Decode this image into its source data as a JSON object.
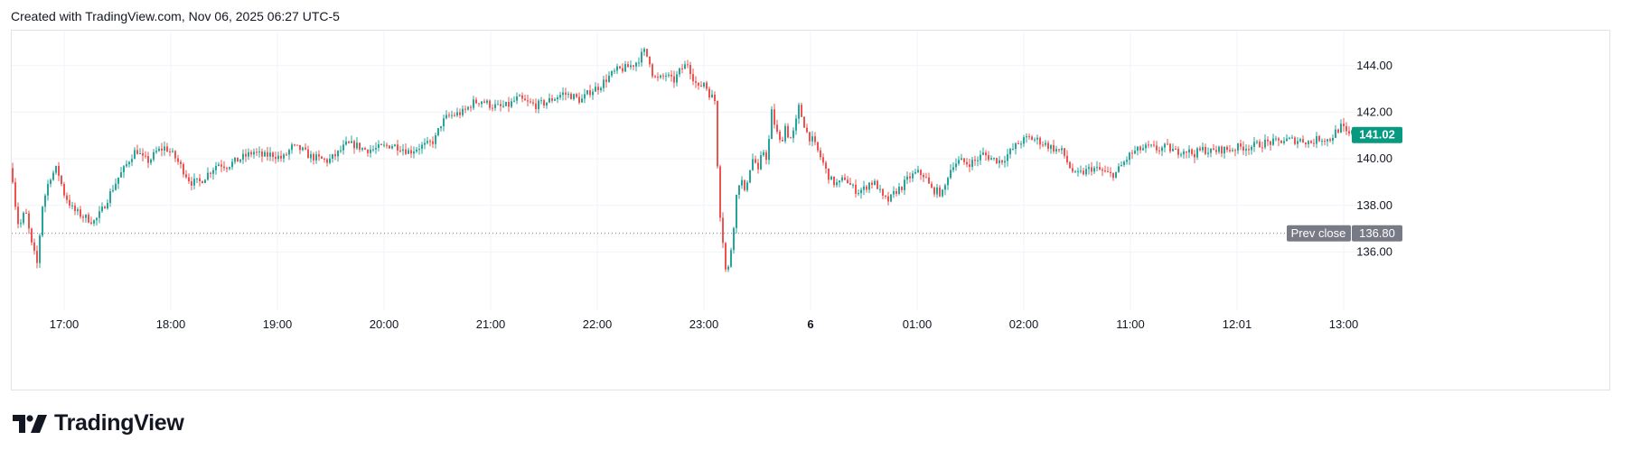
{
  "header": {
    "text": "Created with TradingView.com, Nov 06, 2025 06:27 UTC-5"
  },
  "brand": {
    "name": "TradingView",
    "logo_icon": "tradingview-logo-icon"
  },
  "colors": {
    "up": "#26a69a",
    "down": "#ef5350",
    "last_price_bg": "#089981",
    "prev_close_bg": "#787b86",
    "grid": "#f0f3fa"
  },
  "chart_data": {
    "type": "candlestick",
    "ylim": [
      133.5,
      145.5
    ],
    "y_ticks": [
      "136.00",
      "138.00",
      "140.00",
      "142.00",
      "144.00"
    ],
    "x_ticks": [
      "17:00",
      "18:00",
      "19:00",
      "20:00",
      "21:00",
      "22:00",
      "23:00",
      "6",
      "01:00",
      "02:00",
      "11:00",
      "12:01",
      "13:00"
    ],
    "x_tick_bold": [
      "6"
    ],
    "last_price": {
      "value": 141.02,
      "label": "141.02"
    },
    "prev_close": {
      "value": 136.8,
      "label": "Prev close",
      "value_label": "136.80"
    },
    "close_path": [
      [
        0,
        139.6
      ],
      [
        3,
        138.3
      ],
      [
        8,
        137.0
      ],
      [
        15,
        137.8
      ],
      [
        22,
        136.3
      ],
      [
        28,
        135.5
      ],
      [
        34,
        138.0
      ],
      [
        42,
        139.2
      ],
      [
        50,
        139.6
      ],
      [
        58,
        138.5
      ],
      [
        68,
        137.8
      ],
      [
        80,
        137.5
      ],
      [
        92,
        137.3
      ],
      [
        100,
        137.8
      ],
      [
        110,
        138.6
      ],
      [
        118,
        139.2
      ],
      [
        125,
        139.6
      ],
      [
        132,
        140.1
      ],
      [
        138,
        140.4
      ],
      [
        145,
        140.0
      ],
      [
        152,
        139.9
      ],
      [
        160,
        140.3
      ],
      [
        170,
        140.5
      ],
      [
        180,
        140.1
      ],
      [
        190,
        139.5
      ],
      [
        198,
        139.0
      ],
      [
        208,
        139.0
      ],
      [
        218,
        139.4
      ],
      [
        228,
        139.8
      ],
      [
        238,
        139.7
      ],
      [
        248,
        139.9
      ],
      [
        258,
        140.1
      ],
      [
        268,
        140.3
      ],
      [
        278,
        140.1
      ],
      [
        288,
        140.2
      ],
      [
        300,
        140.0
      ],
      [
        310,
        140.5
      ],
      [
        320,
        140.4
      ],
      [
        330,
        140.1
      ],
      [
        340,
        140.0
      ],
      [
        350,
        139.9
      ],
      [
        360,
        140.2
      ],
      [
        370,
        140.6
      ],
      [
        380,
        140.6
      ],
      [
        390,
        140.4
      ],
      [
        400,
        140.4
      ],
      [
        410,
        140.5
      ],
      [
        420,
        140.6
      ],
      [
        430,
        140.5
      ],
      [
        440,
        140.3
      ],
      [
        450,
        140.5
      ],
      [
        460,
        140.6
      ],
      [
        468,
        140.8
      ],
      [
        475,
        141.5
      ],
      [
        482,
        141.8
      ],
      [
        490,
        141.9
      ],
      [
        500,
        142.0
      ],
      [
        510,
        142.4
      ],
      [
        520,
        142.5
      ],
      [
        530,
        142.3
      ],
      [
        540,
        142.2
      ],
      [
        550,
        142.3
      ],
      [
        560,
        142.6
      ],
      [
        570,
        142.4
      ],
      [
        580,
        142.3
      ],
      [
        590,
        142.4
      ],
      [
        600,
        142.6
      ],
      [
        610,
        142.8
      ],
      [
        620,
        142.7
      ],
      [
        630,
        142.5
      ],
      [
        640,
        142.9
      ],
      [
        650,
        143.1
      ],
      [
        660,
        143.5
      ],
      [
        670,
        143.8
      ],
      [
        680,
        143.9
      ],
      [
        690,
        144.1
      ],
      [
        700,
        144.6
      ],
      [
        706,
        144.2
      ],
      [
        710,
        143.5
      ],
      [
        716,
        143.4
      ],
      [
        724,
        143.6
      ],
      [
        732,
        143.3
      ],
      [
        740,
        143.8
      ],
      [
        748,
        144.1
      ],
      [
        754,
        143.5
      ],
      [
        760,
        143.0
      ],
      [
        766,
        143.3
      ],
      [
        772,
        142.8
      ],
      [
        778,
        142.5
      ],
      [
        783,
        138.0
      ],
      [
        787,
        136.5
      ],
      [
        791,
        134.8
      ],
      [
        795,
        135.8
      ],
      [
        799,
        137.2
      ],
      [
        803,
        138.8
      ],
      [
        807,
        139.2
      ],
      [
        811,
        138.5
      ],
      [
        816,
        139.5
      ],
      [
        821,
        140.1
      ],
      [
        826,
        139.4
      ],
      [
        831,
        140.4
      ],
      [
        836,
        140.0
      ],
      [
        841,
        142.0
      ],
      [
        846,
        141.2
      ],
      [
        851,
        140.6
      ],
      [
        856,
        141.4
      ],
      [
        861,
        140.8
      ],
      [
        866,
        141.2
      ],
      [
        871,
        142.2
      ],
      [
        876,
        141.6
      ],
      [
        881,
        141.0
      ],
      [
        886,
        140.8
      ],
      [
        891,
        140.4
      ],
      [
        896,
        140.0
      ],
      [
        902,
        139.4
      ],
      [
        908,
        139.0
      ],
      [
        915,
        138.9
      ],
      [
        922,
        139.2
      ],
      [
        929,
        138.8
      ],
      [
        936,
        138.6
      ],
      [
        943,
        138.7
      ],
      [
        950,
        139.0
      ],
      [
        957,
        138.9
      ],
      [
        964,
        138.3
      ],
      [
        971,
        138.2
      ],
      [
        978,
        138.6
      ],
      [
        985,
        138.8
      ],
      [
        993,
        139.2
      ],
      [
        1002,
        139.4
      ],
      [
        1010,
        139.3
      ],
      [
        1017,
        138.7
      ],
      [
        1024,
        138.6
      ],
      [
        1031,
        138.5
      ],
      [
        1036,
        139.3
      ],
      [
        1042,
        139.8
      ],
      [
        1050,
        139.9
      ],
      [
        1058,
        139.8
      ],
      [
        1066,
        139.9
      ],
      [
        1075,
        140.2
      ],
      [
        1085,
        140.0
      ],
      [
        1095,
        139.9
      ],
      [
        1105,
        140.3
      ],
      [
        1115,
        140.7
      ],
      [
        1125,
        140.9
      ],
      [
        1135,
        140.8
      ],
      [
        1145,
        140.6
      ],
      [
        1155,
        140.4
      ],
      [
        1163,
        140.3
      ],
      [
        1170,
        139.7
      ],
      [
        1177,
        139.3
      ],
      [
        1185,
        139.4
      ],
      [
        1195,
        139.6
      ],
      [
        1205,
        139.5
      ],
      [
        1215,
        139.3
      ],
      [
        1222,
        139.4
      ],
      [
        1230,
        139.8
      ],
      [
        1238,
        140.2
      ],
      [
        1248,
        140.4
      ],
      [
        1258,
        140.5
      ],
      [
        1268,
        140.4
      ],
      [
        1278,
        140.5
      ],
      [
        1288,
        140.3
      ],
      [
        1298,
        140.4
      ],
      [
        1308,
        140.2
      ],
      [
        1318,
        140.4
      ],
      [
        1328,
        140.3
      ],
      [
        1338,
        140.4
      ],
      [
        1348,
        140.4
      ],
      [
        1358,
        140.5
      ],
      [
        1368,
        140.5
      ],
      [
        1378,
        140.6
      ],
      [
        1388,
        140.7
      ],
      [
        1398,
        140.7
      ],
      [
        1408,
        140.8
      ],
      [
        1418,
        140.8
      ],
      [
        1428,
        140.8
      ],
      [
        1438,
        140.7
      ],
      [
        1448,
        140.9
      ],
      [
        1458,
        140.8
      ],
      [
        1466,
        141.2
      ],
      [
        1472,
        141.4
      ],
      [
        1478,
        141.0
      ],
      [
        1484,
        141.1
      ],
      [
        1488,
        141.0
      ],
      [
        1490,
        141.02
      ]
    ],
    "wick_scale": 0.25
  }
}
